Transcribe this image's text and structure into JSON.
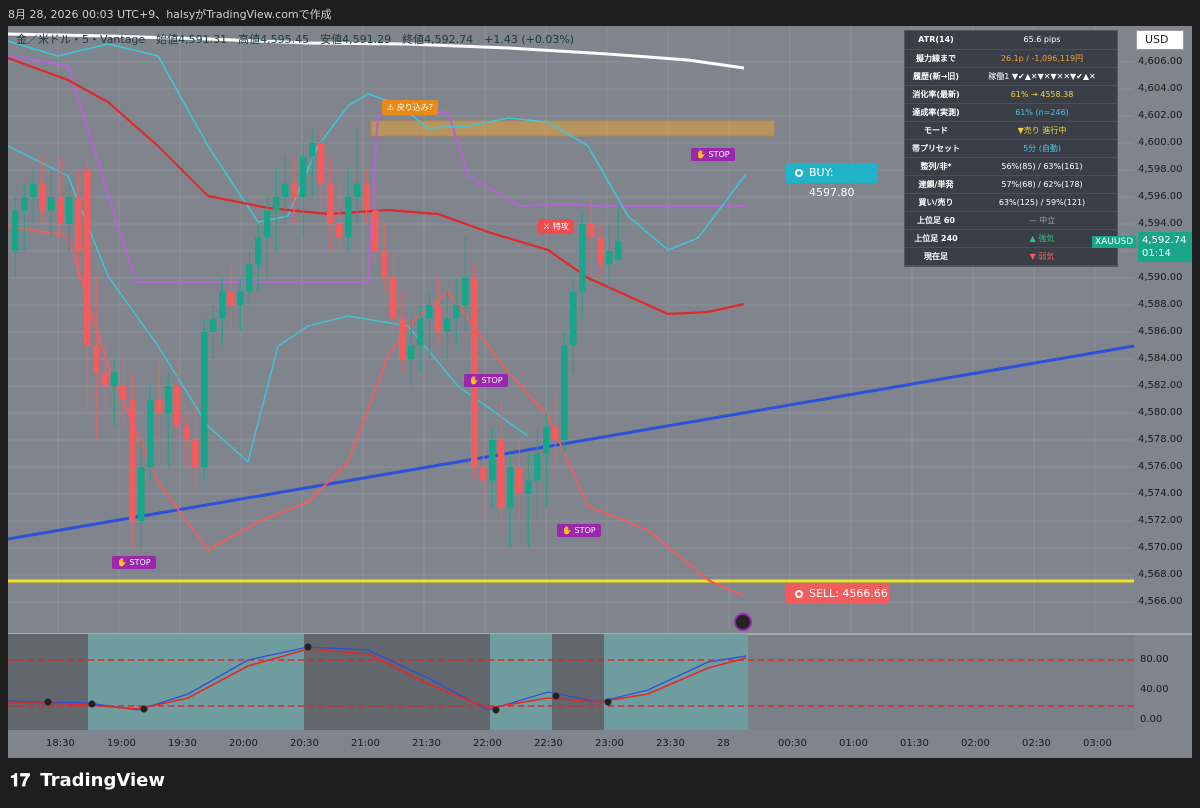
{
  "header": {
    "title": "8月 28, 2026 00:03 UTC+9、halsyがTradingView.comで作成"
  },
  "legend": {
    "text": "金／米ドル・5・Vantage　始値4,591.31　高値4,595.45　安値4,591.29　終値4,592.74　+1.43 (+0.03%)"
  },
  "currency_button": "USD",
  "info_panel": {
    "rows": [
      {
        "k": "ATR(14)",
        "v": "65.6 pips",
        "color": "#ffffff"
      },
      {
        "k": "擬力線まで",
        "v": "26.1p / -1,096,119円",
        "color": "#f0a030"
      },
      {
        "k": "履歴(新→旧)",
        "v": "稼働1 ▼✔▲✕▼✕▼✕✕▼✔▲✕",
        "color": "#ffffff"
      },
      {
        "k": "消化率(最新)",
        "v": "61% → 4558.38",
        "color": "#f5d142"
      },
      {
        "k": "達成率(実測)",
        "v": "61% (n=246)",
        "color": "#4fc3e8"
      },
      {
        "k": "モード",
        "v": "▼売り 進行中",
        "color": "#f5d142"
      },
      {
        "k": "帯プリセット",
        "v": "5分 (自動)",
        "color": "#4fc3e8"
      },
      {
        "k": "整列/非*",
        "v": "56%(85) / 63%(161)",
        "color": "#ffffff"
      },
      {
        "k": "連鎖/単発",
        "v": "57%(68) / 62%(178)",
        "color": "#ffffff"
      },
      {
        "k": "買い/売り",
        "v": "63%(125) / 59%(121)",
        "color": "#ffffff"
      },
      {
        "k": "上位足 60",
        "v": "— 中立",
        "color": "#9aa0a8"
      },
      {
        "k": "上位足 240",
        "v": "▲ 強気",
        "color": "#2ec27e"
      },
      {
        "k": "現在足",
        "v": "▼ 弱気",
        "color": "#f25c5c"
      }
    ]
  },
  "tags": {
    "stop1": "STOP",
    "stop2": "STOP",
    "stop3": "STOP",
    "stop4": "STOP",
    "pullback": "戻り込み?",
    "special": "特攻"
  },
  "buy_label": "BUY: 4597.80",
  "sell_label": "SELL: 4566.66",
  "current": {
    "symbol": "XAUUSD",
    "price": "4,592.74",
    "countdown": "01:14"
  },
  "price_axis": [
    "4,606.00",
    "4,604.00",
    "4,602.00",
    "4,600.00",
    "4,598.00",
    "4,596.00",
    "4,594.00",
    "4,592.00",
    "4,590.00",
    "4,588.00",
    "4,586.00",
    "4,584.00",
    "4,582.00",
    "4,580.00",
    "4,578.00",
    "4,576.00",
    "4,574.00",
    "4,572.00",
    "4,570.00",
    "4,568.00",
    "4,566.00"
  ],
  "osc_axis": [
    "80.00",
    "40.00",
    "0.00"
  ],
  "time_axis": [
    "18:30",
    "19:00",
    "19:30",
    "20:00",
    "20:30",
    "21:00",
    "21:30",
    "22:00",
    "22:30",
    "23:00",
    "23:30",
    "28",
    "00:30",
    "01:00",
    "01:30",
    "02:00",
    "02:30",
    "03:00"
  ],
  "footer": {
    "brand": "TradingView"
  },
  "colors": {
    "up": "#17a68a",
    "down": "#f25c5c",
    "trend": "#2b52d9",
    "sell_line": "#f5e21c",
    "bb": "#3fc4d8",
    "ma_red": "#e02a2a",
    "purple": "#b463d6",
    "white": "#ffffff"
  },
  "candles": [
    [
      4592,
      4596,
      4590,
      4595
    ],
    [
      4595,
      4597,
      4592,
      4596
    ],
    [
      4596,
      4598,
      4594,
      4597
    ],
    [
      4597,
      4599,
      4594,
      4595
    ],
    [
      4595,
      4598,
      4593,
      4596
    ],
    [
      4596,
      4599,
      4593,
      4594
    ],
    [
      4594,
      4597,
      4592,
      4596
    ],
    [
      4596,
      4598,
      4590,
      4592
    ],
    [
      4598,
      4599,
      4580,
      4585
    ],
    [
      4585,
      4590,
      4578,
      4583
    ],
    [
      4583,
      4585,
      4580,
      4582
    ],
    [
      4582,
      4584,
      4579,
      4583
    ],
    [
      4582,
      4584,
      4579,
      4581
    ],
    [
      4581,
      4583,
      4570,
      4572
    ],
    [
      4572,
      4578,
      4570,
      4576
    ],
    [
      4576,
      4582,
      4575,
      4581
    ],
    [
      4581,
      4584,
      4578,
      4580
    ],
    [
      4580,
      4583,
      4576,
      4582
    ],
    [
      4582,
      4584,
      4578,
      4579
    ],
    [
      4579,
      4580,
      4576,
      4578
    ],
    [
      4578,
      4581,
      4574,
      4576
    ],
    [
      4576,
      4587,
      4575,
      4586
    ],
    [
      4586,
      4588,
      4584,
      4587
    ],
    [
      4587,
      4590,
      4585,
      4589
    ],
    [
      4589,
      4591,
      4586,
      4588
    ],
    [
      4588,
      4590,
      4586,
      4589
    ],
    [
      4589,
      4592,
      4588,
      4591
    ],
    [
      4591,
      4594,
      4589,
      4593
    ],
    [
      4593,
      4596,
      4590,
      4595
    ],
    [
      4595,
      4598,
      4592,
      4596
    ],
    [
      4596,
      4599,
      4594,
      4597
    ],
    [
      4597,
      4599,
      4594,
      4596
    ],
    [
      4596,
      4600,
      4593,
      4599
    ],
    [
      4599,
      4601,
      4596,
      4600
    ],
    [
      4600,
      4601,
      4595,
      4597
    ],
    [
      4597,
      4599,
      4592,
      4594
    ],
    [
      4594,
      4597,
      4592,
      4593
    ],
    [
      4593,
      4598,
      4592,
      4596
    ],
    [
      4596,
      4601,
      4594,
      4597
    ],
    [
      4597,
      4598,
      4594,
      4595
    ],
    [
      4595,
      4597,
      4591,
      4592
    ],
    [
      4592,
      4594,
      4589,
      4590
    ],
    [
      4590,
      4592,
      4586,
      4587
    ],
    [
      4587,
      4589,
      4583,
      4584
    ],
    [
      4584,
      4587,
      4582,
      4585
    ],
    [
      4585,
      4588,
      4583,
      4587
    ],
    [
      4587,
      4589,
      4584,
      4588
    ],
    [
      4588,
      4590,
      4585,
      4586
    ],
    [
      4586,
      4589,
      4584,
      4587
    ],
    [
      4587,
      4590,
      4585,
      4588
    ],
    [
      4588,
      4593,
      4586,
      4590
    ],
    [
      4590,
      4591,
      4575,
      4576
    ],
    [
      4576,
      4578,
      4572,
      4575
    ],
    [
      4575,
      4579,
      4573,
      4578
    ],
    [
      4578,
      4581,
      4571,
      4573
    ],
    [
      4573,
      4577,
      4570,
      4576
    ],
    [
      4576,
      4578,
      4572,
      4574
    ],
    [
      4574,
      4577,
      4570,
      4575
    ],
    [
      4575,
      4579,
      4572,
      4577
    ],
    [
      4577,
      4580,
      4573,
      4579
    ],
    [
      4579,
      4582,
      4576,
      4578
    ],
    [
      4578,
      4586,
      4577,
      4585
    ],
    [
      4585,
      4590,
      4583,
      4589
    ],
    [
      4589,
      4595,
      4587,
      4594
    ],
    [
      4594,
      4596,
      4590,
      4593
    ],
    [
      4593,
      4594,
      4590,
      4591
    ],
    [
      4591,
      4594,
      4589,
      4592
    ],
    [
      4591.31,
      4595.45,
      4591.29,
      4592.74
    ]
  ]
}
